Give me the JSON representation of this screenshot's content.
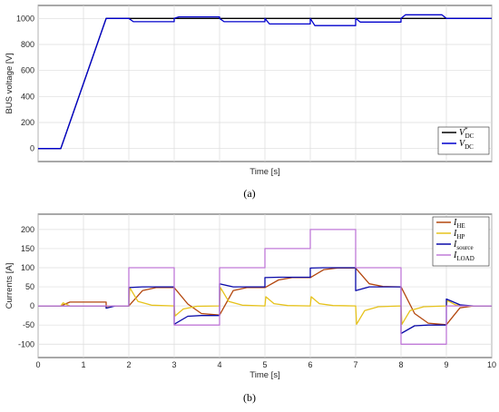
{
  "chart_data": [
    {
      "type": "line",
      "caption": "(a)",
      "xlabel": "Time [s]",
      "ylabel": "BUS voltage [V]",
      "xlim": [
        0,
        10
      ],
      "ylim": [
        -100,
        1100
      ],
      "yticks": [
        0,
        200,
        400,
        600,
        800,
        1000
      ],
      "xticks_visible": false,
      "grid": true,
      "legend_placement": "bottom-right",
      "series": [
        {
          "name": "V*DC",
          "legend_main": "V",
          "legend_sup": "*",
          "legend_sub": "DC",
          "color": "#000000",
          "x": [
            0,
            0.5,
            1.5,
            10
          ],
          "y": [
            0,
            0,
            1000,
            1000
          ]
        },
        {
          "name": "VDC",
          "legend_main": "V",
          "legend_sup": "",
          "legend_sub": "DC",
          "color": "#0000cc",
          "x": [
            0,
            0.5,
            1.5,
            2.0,
            2.1,
            3.0,
            3.0,
            3.1,
            4.0,
            4.0,
            4.1,
            5.0,
            5.0,
            5.1,
            6.0,
            6.0,
            6.1,
            7.0,
            7.0,
            7.1,
            8.0,
            8.0,
            8.1,
            8.9,
            9.0,
            9.1,
            10
          ],
          "y": [
            0,
            0,
            1000,
            1000,
            975,
            975,
            1000,
            1012,
            1012,
            1000,
            975,
            975,
            1000,
            958,
            958,
            1000,
            945,
            945,
            1000,
            972,
            972,
            1000,
            1028,
            1028,
            1000,
            1000,
            1000
          ]
        }
      ]
    },
    {
      "type": "line",
      "caption": "(b)",
      "xlabel": "Time [s]",
      "ylabel": "Currents [A]",
      "xlim": [
        0,
        10
      ],
      "ylim": [
        -135,
        240
      ],
      "yticks": [
        -100,
        -50,
        0,
        50,
        100,
        150,
        200
      ],
      "xticks": [
        0,
        1,
        2,
        3,
        4,
        5,
        6,
        7,
        8,
        9,
        10
      ],
      "grid": true,
      "legend_placement": "top-right",
      "series": [
        {
          "name": "IHE",
          "legend_main": "I",
          "legend_sub": "HE",
          "color": "#b3470e",
          "x": [
            0,
            0.5,
            0.7,
            1.5,
            1.5,
            2.0,
            2.3,
            2.6,
            3.0,
            3.3,
            3.6,
            4.0,
            4.3,
            4.6,
            5.0,
            5.3,
            5.6,
            6.0,
            6.3,
            6.6,
            7.0,
            7.3,
            7.6,
            8.0,
            8.3,
            8.6,
            9.0,
            9.3,
            9.6,
            10
          ],
          "y": [
            0,
            0,
            10,
            10,
            0,
            0,
            40,
            48,
            48,
            5,
            -20,
            -24,
            40,
            48,
            48,
            68,
            74,
            74,
            95,
            99,
            99,
            58,
            51,
            50,
            -20,
            -45,
            -49,
            -5,
            0,
            0
          ]
        },
        {
          "name": "IHP",
          "legend_main": "I",
          "legend_sub": "HP",
          "color": "#e6c21a",
          "x": [
            0,
            0.5,
            0.55,
            0.7,
            1.5,
            1.5,
            1.6,
            2.0,
            2.02,
            2.2,
            2.5,
            3.0,
            3.02,
            3.2,
            3.5,
            4.0,
            4.02,
            4.2,
            4.5,
            5.0,
            5.02,
            5.2,
            5.5,
            6.0,
            6.02,
            6.2,
            6.5,
            7.0,
            7.02,
            7.2,
            7.5,
            8.0,
            8.02,
            8.2,
            8.5,
            9.0,
            9.02,
            9.2,
            9.5,
            10
          ],
          "y": [
            0,
            0,
            8,
            0,
            0,
            -6,
            0,
            0,
            48,
            12,
            2,
            0,
            -26,
            -8,
            -1,
            0,
            48,
            12,
            2,
            0,
            24,
            6,
            1,
            0,
            24,
            6,
            1,
            0,
            -48,
            -12,
            -2,
            0,
            -48,
            -12,
            -2,
            0,
            14,
            3,
            0,
            0
          ]
        },
        {
          "name": "Isource",
          "legend_main": "I",
          "legend_sub": "source",
          "color": "#0a0aa8",
          "x": [
            0,
            0.5,
            1.5,
            1.5,
            1.7,
            2.0,
            2.0,
            2.3,
            2.6,
            3.0,
            3.0,
            3.3,
            3.6,
            4.0,
            4.0,
            4.3,
            4.6,
            5.0,
            5.0,
            5.3,
            5.6,
            6.0,
            6.0,
            6.3,
            6.6,
            7.0,
            7.0,
            7.3,
            7.6,
            8.0,
            8.0,
            8.3,
            8.6,
            9.0,
            9.0,
            9.3,
            9.6,
            10
          ],
          "y": [
            0,
            0,
            0,
            -6,
            0,
            0,
            48,
            50,
            50,
            50,
            -48,
            -27,
            -25,
            -25,
            58,
            50,
            50,
            50,
            74,
            75,
            75,
            75,
            99,
            100,
            100,
            100,
            40,
            50,
            50,
            50,
            -72,
            -52,
            -50,
            -50,
            18,
            3,
            0,
            0
          ]
        },
        {
          "name": "ILOAD",
          "legend_main": "I",
          "legend_sub": "LOAD",
          "color": "#c07ad8",
          "x": [
            0,
            2,
            2,
            3,
            3,
            4,
            4,
            5,
            5,
            6,
            6,
            7,
            7,
            8,
            8,
            9,
            9,
            10
          ],
          "y": [
            0,
            0,
            100,
            100,
            -50,
            -50,
            100,
            100,
            150,
            150,
            200,
            200,
            100,
            100,
            -100,
            -100,
            0,
            0
          ]
        }
      ]
    }
  ]
}
